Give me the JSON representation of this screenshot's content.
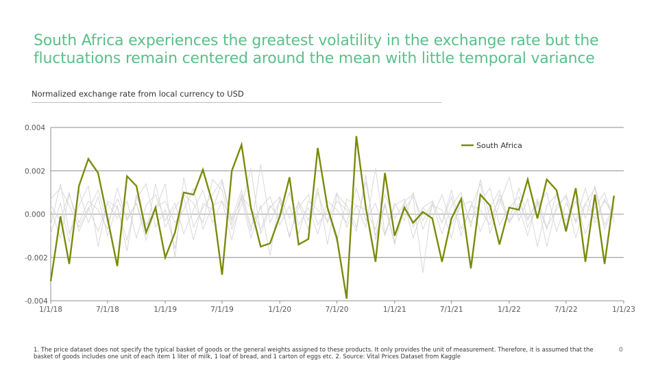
{
  "headline": "South Africa experiences the greatest volatility in the exchange rate but the fluctuations remain centered around the mean with little temporal variance",
  "subtitle": "Normalized exchange rate from local currency to USD",
  "footnote": "1. The price dataset does not specify the typical basket of goods or the general weights assigned to these products. It only provides the unit of measurement. Therefore, it is assumed that the basket of goods includes one unit of each item 1 liter of milk, 1 loaf of bread, and 1 carton of eggs etc. 2.  Source: Vital Prices Dataset from Kaggle",
  "page_number": "0",
  "colors": {
    "highlight": "#7a8a0a",
    "background_series": "#d4d4d4",
    "axis": "#8c8c8c",
    "headline": "#5bbf8a"
  },
  "chart_data": {
    "type": "line",
    "title": "",
    "xlabel": "",
    "ylabel": "",
    "ylim": [
      -0.004,
      0.004
    ],
    "yticks": [
      "0.004",
      "0.002",
      "0.000",
      "-0.002",
      "-0.004"
    ],
    "xticks": [
      "1/1/18",
      "7/1/18",
      "1/1/19",
      "7/1/19",
      "1/1/20",
      "7/1/20",
      "1/1/21",
      "7/1/21",
      "1/1/22",
      "7/1/22",
      "1/1/23"
    ],
    "x_range": [
      "2018-01-01",
      "2023-01-01"
    ],
    "grid": true,
    "legend_position": "top-right",
    "highlight_series": {
      "name": "South Africa",
      "x": [
        "2018-01",
        "2018-02",
        "2018-03",
        "2018-04",
        "2018-05",
        "2018-06",
        "2018-07",
        "2018-08",
        "2018-09",
        "2018-10",
        "2018-11",
        "2018-12",
        "2019-01",
        "2019-02",
        "2019-03",
        "2019-04",
        "2019-05",
        "2019-06",
        "2019-07",
        "2019-08",
        "2019-09",
        "2019-10",
        "2019-11",
        "2019-12",
        "2020-01",
        "2020-02",
        "2020-03",
        "2020-04",
        "2020-05",
        "2020-06",
        "2020-07",
        "2020-08",
        "2020-09",
        "2020-10",
        "2020-11",
        "2020-12",
        "2021-01",
        "2021-02",
        "2021-03",
        "2021-04",
        "2021-05",
        "2021-06",
        "2021-07",
        "2021-08",
        "2021-09",
        "2021-10",
        "2021-11",
        "2021-12",
        "2022-01",
        "2022-02",
        "2022-03",
        "2022-04",
        "2022-05",
        "2022-06",
        "2022-07",
        "2022-08",
        "2022-09",
        "2022-10",
        "2022-11",
        "2022-12"
      ],
      "values": [
        -0.0031,
        -0.0001,
        -0.0023,
        0.0013,
        0.00255,
        0.0019,
        -0.0002,
        -0.0024,
        0.00175,
        0.0013,
        -0.00085,
        0.0003,
        -0.002,
        -0.00085,
        0.001,
        0.0009,
        0.00205,
        0.0005,
        -0.0028,
        0.002,
        0.0032,
        0.0003,
        -0.0015,
        -0.00135,
        -0.0001,
        0.0017,
        -0.0014,
        -0.00115,
        0.00305,
        0.0003,
        -0.0011,
        -0.0039,
        0.0036,
        0.0003,
        -0.0022,
        0.0019,
        -0.001,
        0.0003,
        -0.0004,
        0.0001,
        -0.0002,
        -0.0022,
        -0.0002,
        0.0007,
        -0.0025,
        0.0009,
        0.0004,
        -0.0014,
        0.0003,
        0.0002,
        0.0016,
        -0.0002,
        0.0016,
        0.0011,
        -0.0008,
        0.0012,
        -0.0022,
        0.0009,
        -0.0023,
        0.00085
      ]
    },
    "background_series": [
      {
        "values": [
          0.0007,
          0.0012,
          0.0004,
          -0.0006,
          0.0003,
          -0.0008,
          0.0005,
          -0.0002,
          0.0006,
          -0.0011,
          0.0004,
          0.0009,
          -0.0003,
          0.0005,
          -0.0009,
          0.0002,
          0.0011,
          -0.0004,
          0.0006,
          -0.0012,
          0.0008,
          0.0003,
          -0.0007,
          0.0004,
          -0.0002,
          0.001,
          -0.0005,
          0.0003,
          -0.0009,
          0.0006,
          0.0002,
          -0.0004,
          0.0012,
          -0.0003,
          0.0005,
          -0.001,
          0.0004,
          0.0007,
          -0.0006,
          0.0003,
          -0.0002,
          0.0009,
          -0.0005,
          0.0004,
          0.0006,
          -0.0008,
          0.0003,
          0.0011,
          -0.0004,
          0.0005,
          -0.0003,
          0.0007,
          -0.0006,
          0.0002,
          0.0009,
          -0.0004,
          0.0005,
          -0.0002,
          0.0006,
          0.0001
        ]
      },
      {
        "values": [
          -0.0005,
          0.0014,
          -0.0009,
          0.0004,
          0.0013,
          -0.0015,
          0.0006,
          0.0003,
          -0.0012,
          0.0007,
          0.0014,
          -0.0006,
          0.0002,
          -0.0016,
          0.0009,
          0.0005,
          -0.0004,
          0.0016,
          0.0011,
          -0.0007,
          0.0004,
          0.0021,
          -0.0009,
          0.0003,
          0.0008,
          -0.0011,
          0.0006,
          -0.0003,
          0.0012,
          -0.0014,
          0.0009,
          0.0004,
          -0.0006,
          0.0015,
          -0.001,
          0.0005,
          -0.0013,
          0.0002,
          0.0008,
          -0.0027,
          0.0006,
          -0.0004,
          0.0011,
          -0.0007,
          0.0003,
          0.0014,
          -0.0009,
          0.0005,
          0.0017,
          -0.0003,
          0.0007,
          -0.0015,
          0.0004,
          0.0009,
          -0.0006,
          0.0011,
          -0.0002,
          0.0013,
          -0.0005,
          0.0004
        ]
      },
      {
        "values": [
          0.0002,
          -0.0011,
          0.0009,
          -0.0004,
          0.0006,
          0.0002,
          -0.0007,
          0.0012,
          -0.0003,
          0.0005,
          -0.0009,
          0.0014,
          -0.0006,
          0.0003,
          0.0008,
          -0.0012,
          0.0005,
          0.0002,
          0.0015,
          -0.0005,
          0.0009,
          -0.0008,
          0.0023,
          -0.0004,
          0.0006,
          -0.001,
          0.0003,
          0.0009,
          -0.0005,
          0.0002,
          -0.0013,
          0.0007,
          0.0004,
          -0.0006,
          0.0021,
          -0.0009,
          0.0005,
          -0.0003,
          0.001,
          -0.0007,
          0.0004,
          0.0002,
          -0.0011,
          0.0008,
          -0.0004,
          0.0006,
          0.0012,
          -0.0005,
          0.0003,
          0.0008,
          -0.0006,
          0.0004,
          0.001,
          -0.0008,
          0.0005,
          -0.0003,
          0.0012,
          -0.0004,
          0.0007,
          -0.0002
        ]
      },
      {
        "values": [
          -0.0009,
          0.0005,
          -0.0013,
          0.0011,
          -0.0004,
          0.0008,
          -0.001,
          0.0004,
          -0.0017,
          0.0009,
          -0.0005,
          0.0002,
          0.0014,
          -0.002,
          0.0017,
          -0.0006,
          0.0003,
          0.0009,
          0.0016,
          -0.0003,
          0.0007,
          -0.0011,
          0.0004,
          -0.0019,
          0.0008,
          -0.0002,
          0.0005,
          -0.0007,
          0.001,
          -0.0004,
          0.0006,
          0.0002,
          -0.0008,
          0.0018,
          -0.0012,
          0.0004,
          -0.0014,
          0.0006,
          0.0009,
          -0.0003,
          0.0005,
          -0.0009,
          0.0004,
          0.001,
          -0.0006,
          0.0016,
          -0.0002,
          0.0007,
          -0.0004,
          0.0003,
          -0.001,
          0.0006,
          -0.0015,
          0.0004,
          0.0008,
          -0.0011,
          0.0005,
          0.0012,
          -0.0007,
          0.0003
        ]
      },
      {
        "values": [
          0.0004,
          -0.0003,
          0.001,
          -0.0008,
          0.0002,
          0.0011,
          -0.0004,
          0.0007,
          -0.0002,
          0.0005,
          -0.0012,
          0.0003,
          0.0006,
          -0.0004,
          0.0002,
          0.0012,
          -0.0007,
          0.0004,
          0.0006,
          -0.0002,
          0.0011,
          -0.0006,
          0.0003,
          0.0008,
          -0.0005,
          0.0004,
          -0.0009,
          0.0006,
          0.0002,
          -0.0003,
          0.001,
          -0.0006,
          0.0004,
          0.0002,
          -0.0007,
          0.0009,
          -0.0002,
          0.0005,
          -0.0011,
          0.0003,
          0.0006,
          -0.0004,
          0.0008,
          -0.001,
          0.0004,
          0.0002,
          -0.0005,
          0.0009,
          -0.0003,
          0.0012,
          -0.0002,
          0.0005,
          -0.0007,
          0.001,
          -0.0003,
          0.0006,
          -0.0009,
          0.0003,
          0.001,
          -0.0004
        ]
      }
    ]
  }
}
